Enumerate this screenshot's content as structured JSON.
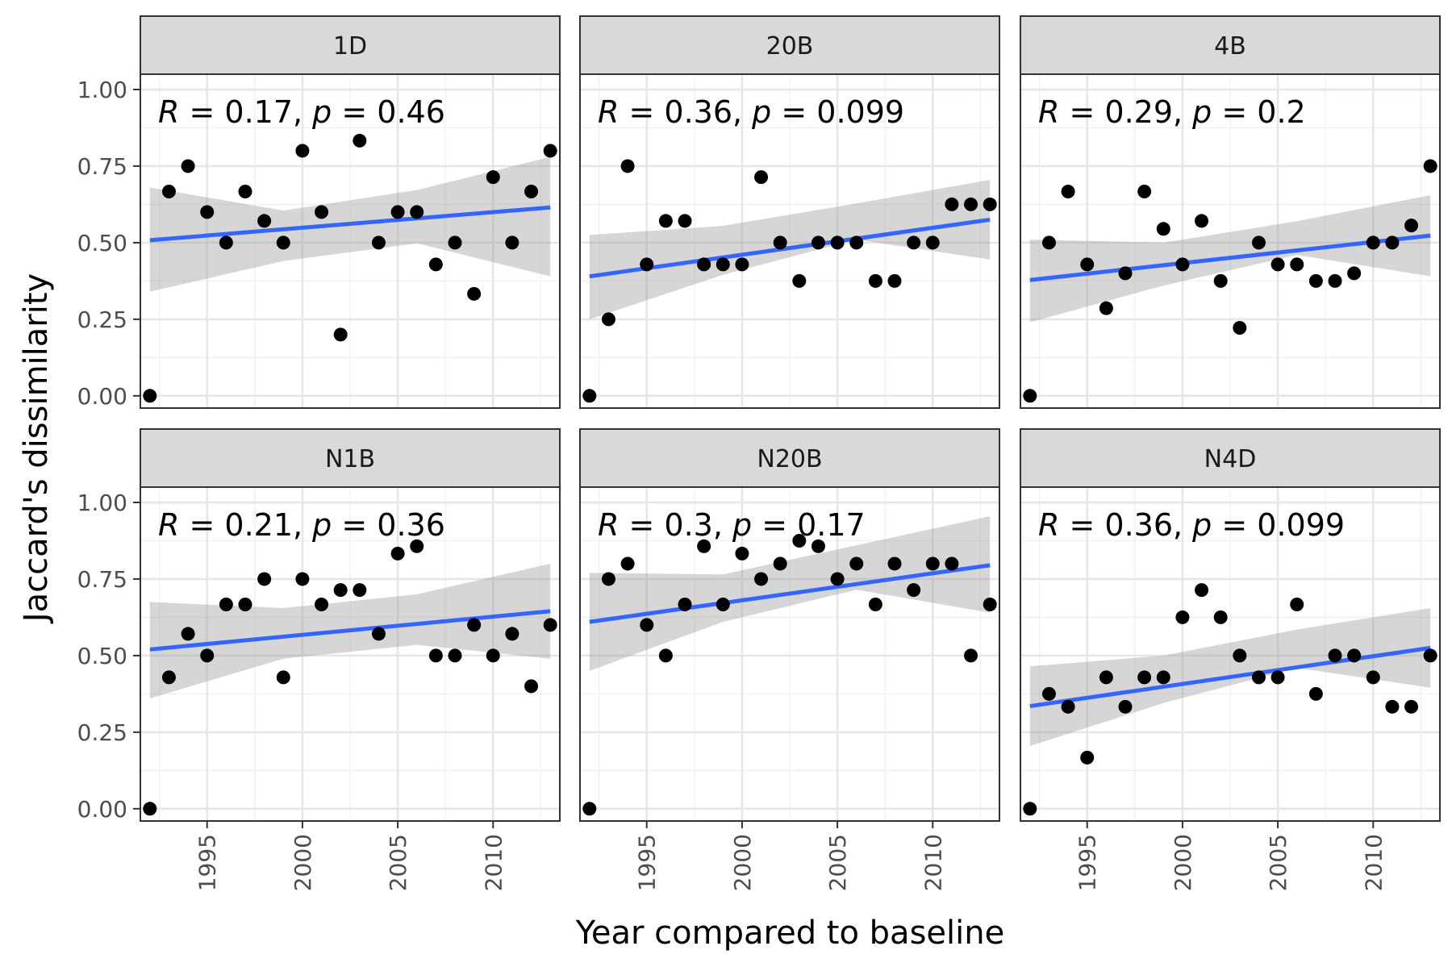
{
  "chart_data": {
    "type": "scatter",
    "xlabel": "Year compared to baseline",
    "ylabel": "Jaccard's dissimilarity",
    "xlim": [
      1991.5,
      2013.5
    ],
    "ylim": [
      -0.04,
      1.05
    ],
    "x_ticks": [
      1995,
      2000,
      2005,
      2010
    ],
    "y_ticks": [
      0,
      0.25,
      0.5,
      0.75,
      1.0
    ],
    "y_tick_labels": [
      "0.00",
      "0.25",
      "0.50",
      "0.75",
      "1.00"
    ],
    "grid": true,
    "colors": {
      "points": "#000000",
      "fit_line": "#3366FF",
      "confidence_band": "#999999",
      "strip": "#D9D9D9"
    },
    "x": [
      1992,
      1993,
      1994,
      1995,
      1996,
      1997,
      1998,
      1999,
      2000,
      2001,
      2002,
      2003,
      2004,
      2005,
      2006,
      2007,
      2008,
      2009,
      2010,
      2011,
      2012,
      2013
    ],
    "panels": [
      {
        "name": "1D",
        "annotation": {
          "r": "0.17",
          "p": "0.46"
        },
        "y": [
          0,
          0.667,
          0.75,
          0.6,
          0.5,
          0.667,
          0.571,
          0.5,
          0.8,
          0.6,
          0.2,
          0.833,
          0.5,
          0.6,
          0.6,
          0.429,
          0.5,
          0.333,
          0.714,
          0.5,
          0.667,
          0.8
        ],
        "fit": {
          "y_start": 0.508,
          "y_end": 0.615
        },
        "ci_lower": [
          0.34,
          0.44,
          0.498,
          0.39
        ],
        "ci_upper": [
          0.68,
          0.605,
          0.672,
          0.78
        ]
      },
      {
        "name": "20B",
        "annotation": {
          "r": "0.36",
          "p": "0.099"
        },
        "y": [
          0,
          0.25,
          0.75,
          0.429,
          0.571,
          0.571,
          0.429,
          0.429,
          0.429,
          0.714,
          0.5,
          0.375,
          0.5,
          0.5,
          0.5,
          0.375,
          0.375,
          0.5,
          0.5,
          0.625,
          0.625,
          0.625
        ],
        "fit": {
          "y_start": 0.39,
          "y_end": 0.575
        },
        "ci_lower": [
          0.25,
          0.395,
          0.51,
          0.445
        ],
        "ci_upper": [
          0.525,
          0.555,
          0.628,
          0.705
        ]
      },
      {
        "name": "4B",
        "annotation": {
          "r": "0.29",
          "p": "0.2"
        },
        "y": [
          0,
          0.5,
          0.667,
          0.429,
          0.286,
          0.4,
          0.667,
          0.545,
          0.429,
          0.571,
          0.375,
          0.222,
          0.5,
          0.429,
          0.429,
          0.375,
          0.375,
          0.4,
          0.5,
          0.5,
          0.556,
          0.75
        ],
        "fit": {
          "y_start": 0.378,
          "y_end": 0.523
        },
        "ci_lower": [
          0.24,
          0.36,
          0.46,
          0.39
        ],
        "ci_upper": [
          0.51,
          0.5,
          0.57,
          0.655
        ]
      },
      {
        "name": "N1B",
        "annotation": {
          "r": "0.21",
          "p": "0.36"
        },
        "y": [
          0,
          0.429,
          0.571,
          0.5,
          0.667,
          0.667,
          0.75,
          0.429,
          0.75,
          0.667,
          0.714,
          0.714,
          0.571,
          0.833,
          0.857,
          0.5,
          0.5,
          0.6,
          0.5,
          0.571,
          0.4,
          0.6
        ],
        "fit": {
          "y_start": 0.52,
          "y_end": 0.645
        },
        "ci_lower": [
          0.36,
          0.49,
          0.535,
          0.49
        ],
        "ci_upper": [
          0.675,
          0.655,
          0.7,
          0.8
        ]
      },
      {
        "name": "N20B",
        "annotation": {
          "r": "0.3",
          "p": "0.17"
        },
        "y": [
          0,
          0.75,
          0.8,
          0.6,
          0.5,
          0.667,
          0.857,
          0.667,
          0.833,
          0.75,
          0.8,
          0.875,
          0.857,
          0.75,
          0.8,
          0.667,
          0.8,
          0.714,
          0.8,
          0.8,
          0.5,
          0.667
        ],
        "fit": {
          "y_start": 0.61,
          "y_end": 0.795
        },
        "ci_lower": [
          0.45,
          0.61,
          0.715,
          0.64
        ],
        "ci_upper": [
          0.77,
          0.765,
          0.86,
          0.955
        ]
      },
      {
        "name": "N4D",
        "annotation": {
          "r": "0.36",
          "p": "0.099"
        },
        "y": [
          0,
          0.375,
          0.333,
          0.167,
          0.429,
          0.333,
          0.429,
          0.429,
          0.625,
          0.714,
          0.625,
          0.5,
          0.429,
          0.429,
          0.667,
          0.375,
          0.5,
          0.5,
          0.429,
          0.333,
          0.333,
          0.5
        ],
        "fit": {
          "y_start": 0.335,
          "y_end": 0.525
        },
        "ci_lower": [
          0.205,
          0.345,
          0.46,
          0.395
        ],
        "ci_upper": [
          0.465,
          0.5,
          0.585,
          0.655
        ]
      }
    ]
  }
}
